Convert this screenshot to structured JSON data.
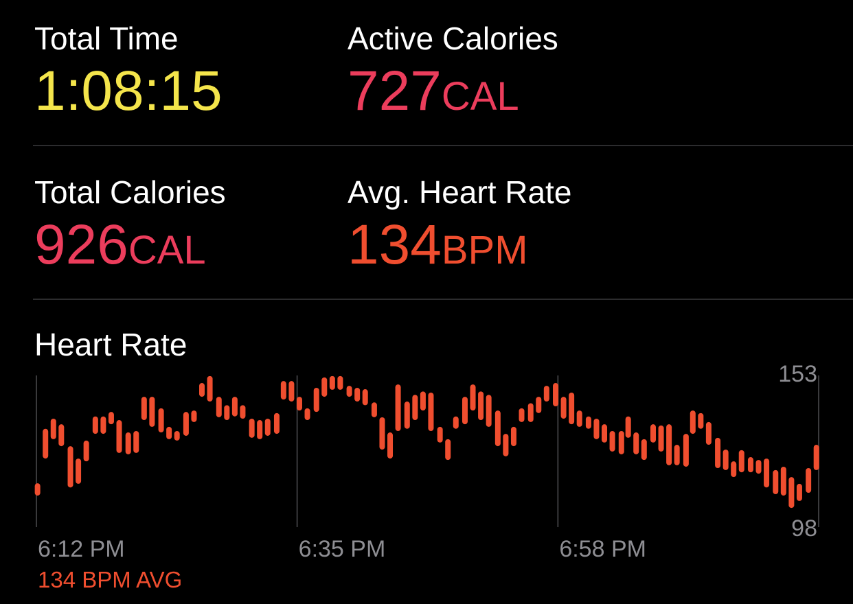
{
  "metrics": [
    {
      "label": "Total Time",
      "value": "1:08:15",
      "color": "#f4e54b"
    },
    {
      "label": "Active Calories",
      "value": 727,
      "unit": "CAL",
      "color": "#ec3d5c"
    },
    {
      "label": "Total Calories",
      "value": 926,
      "unit": "CAL",
      "color": "#ec3d5c"
    },
    {
      "label": "Avg. Heart Rate",
      "value": 134,
      "unit": "BPM",
      "color": "#f04e2f"
    }
  ],
  "chart_data": {
    "type": "range-bar",
    "title": "Heart Rate",
    "footer": "134 BPM AVG",
    "color": "#f04e2f",
    "x": [
      0.1,
      0.8,
      1.5,
      2.2,
      3.0,
      3.7,
      4.4,
      5.2,
      5.9,
      6.6,
      7.3,
      8.1,
      8.8,
      9.5,
      10.2,
      11.0,
      11.7,
      12.4,
      13.2,
      13.9,
      14.6,
      15.3,
      16.1,
      16.8,
      17.5,
      18.2,
      19.0,
      19.7,
      20.4,
      21.2,
      21.8,
      22.5,
      23.2,
      23.9,
      24.7,
      25.4,
      26.1,
      26.8,
      27.6,
      28.3,
      29.0,
      29.8,
      30.5,
      31.2,
      31.9,
      32.7,
      33.4,
      34.1,
      34.8,
      35.6,
      36.3,
      37.0,
      37.8,
      38.5,
      39.2,
      39.9,
      40.7,
      41.4,
      42.1,
      42.8,
      43.6,
      44.3,
      45.0,
      45.8,
      46.5,
      47.2,
      47.9,
      48.7,
      49.4,
      50.1,
      50.8,
      51.6,
      52.2,
      52.9,
      53.6,
      54.4,
      55.1,
      55.8,
      56.5,
      57.3,
      57.9,
      58.6,
      59.3,
      60.1,
      60.8,
      61.5,
      62.2,
      63.0,
      63.7,
      64.4,
      65.2,
      65.9,
      66.6,
      67.3,
      68.1,
      68.8
    ],
    "high": [
      114.6,
      134,
      137.6,
      135.6,
      127.8,
      123.4,
      129.8,
      138.4,
      138.4,
      140,
      137.1,
      132.7,
      133.2,
      145.4,
      145.4,
      141.3,
      134.7,
      133.2,
      140,
      140.5,
      150.3,
      152.8,
      145.4,
      142.4,
      145.4,
      142.4,
      137.6,
      137.1,
      137.6,
      139.6,
      151,
      151,
      145.4,
      141.3,
      148.6,
      152.3,
      152.8,
      152.8,
      149.3,
      148.6,
      148.1,
      143.4,
      138.1,
      132.7,
      149.8,
      143.7,
      146.1,
      147.3,
      146.9,
      134.7,
      130.3,
      138.4,
      145.4,
      149.8,
      147.3,
      146.1,
      140.5,
      132.2,
      134.7,
      141.3,
      143.1,
      145.4,
      149.3,
      150.3,
      145.4,
      146.9,
      140.5,
      138.4,
      137.6,
      135.6,
      133.2,
      133.2,
      138.4,
      132.7,
      130.3,
      135.6,
      135.2,
      135.6,
      128.3,
      132.2,
      140.5,
      139.6,
      136.4,
      130.8,
      126.6,
      122.4,
      126.4,
      123.9,
      122.9,
      123.4,
      119.3,
      120.5,
      116.8,
      114.4,
      120,
      128.3
    ],
    "low": [
      110.2,
      123.4,
      130.3,
      127.8,
      113.1,
      114.4,
      122.4,
      132.2,
      132.2,
      135.6,
      125.4,
      124.9,
      125.4,
      137.1,
      134.7,
      132.7,
      130.3,
      129.8,
      131.5,
      136.4,
      145.4,
      143.7,
      138.1,
      137.1,
      138.4,
      137.6,
      130.8,
      130.3,
      131.5,
      132.2,
      144.4,
      143.7,
      140.5,
      137.1,
      140,
      145.4,
      147.9,
      147.9,
      145.4,
      143.7,
      142.4,
      138.1,
      126.6,
      123.4,
      133.2,
      134,
      137.1,
      140.5,
      133.2,
      129.1,
      122.9,
      134,
      135.6,
      140.5,
      137.1,
      134.7,
      127.8,
      124.2,
      127.8,
      136.4,
      136.4,
      139.6,
      143.7,
      142,
      137.6,
      135.6,
      134.7,
      134,
      130.3,
      129.1,
      125.9,
      124.9,
      130.8,
      124.9,
      122.9,
      129.1,
      125.9,
      121,
      121,
      120.5,
      132.2,
      134,
      128.3,
      120,
      119.3,
      116.8,
      118.5,
      118.5,
      118,
      113.1,
      110.7,
      110.2,
      105.8,
      108.3,
      111.2,
      119.3
    ],
    "xlim": [
      0,
      69
    ],
    "xticks": [
      {
        "value": 0,
        "label": "6:12 PM"
      },
      {
        "value": 23,
        "label": "6:35 PM"
      },
      {
        "value": 46,
        "label": "6:58 PM"
      }
    ],
    "ylim": [
      98,
      153
    ],
    "yticks": [
      98,
      153
    ],
    "grid": true
  }
}
